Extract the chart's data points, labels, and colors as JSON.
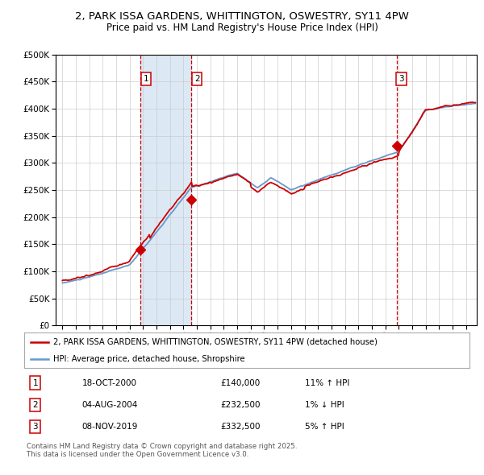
{
  "title": "2, PARK ISSA GARDENS, WHITTINGTON, OSWESTRY, SY11 4PW",
  "subtitle": "Price paid vs. HM Land Registry's House Price Index (HPI)",
  "legend_line1": "2, PARK ISSA GARDENS, WHITTINGTON, OSWESTRY, SY11 4PW (detached house)",
  "legend_line2": "HPI: Average price, detached house, Shropshire",
  "footer": "Contains HM Land Registry data © Crown copyright and database right 2025.\nThis data is licensed under the Open Government Licence v3.0.",
  "sale_dates": [
    "18-OCT-2000",
    "04-AUG-2004",
    "08-NOV-2019"
  ],
  "sale_prices": [
    140000,
    232500,
    332500
  ],
  "sale_labels": [
    "1",
    "2",
    "3"
  ],
  "sale_prices_str": [
    "£140,000",
    "£232,500",
    "£332,500"
  ],
  "sale_hpi_rel": [
    "11% ↑ HPI",
    "1% ↓ HPI",
    "5% ↑ HPI"
  ],
  "vline_years": [
    2000.8,
    2004.6,
    2019.85
  ],
  "shade_regions": [
    [
      2000.8,
      2004.6
    ]
  ],
  "ylim": [
    0,
    500000
  ],
  "yticks": [
    0,
    50000,
    100000,
    150000,
    200000,
    250000,
    300000,
    350000,
    400000,
    450000,
    500000
  ],
  "xlim_start": 1994.5,
  "xlim_end": 2025.8,
  "plot_bg_color": "#ffffff",
  "red_color": "#cc0000",
  "blue_color": "#6699cc",
  "shade_color": "#dce9f5",
  "grid_color": "#cccccc",
  "title_fontsize": 9.5,
  "subtitle_fontsize": 8.5,
  "sale_year_vals": [
    2000.79,
    2004.59,
    2019.84
  ]
}
